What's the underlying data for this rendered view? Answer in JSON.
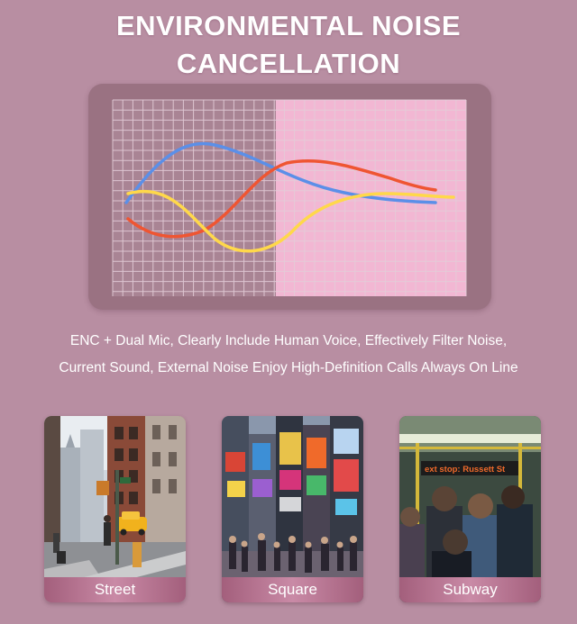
{
  "header": {
    "title_line1": "ENVIRONMENTAL NOISE",
    "title_line2": "CANCELLATION"
  },
  "graph": {
    "icon": "noise-waveform-graphic",
    "line_colors": {
      "blue": "#5b8fe8",
      "red": "#ef5532",
      "yellow": "#ffd84a"
    },
    "grid_color": "#e3cdd8",
    "highlight_color": "#f2b7d3"
  },
  "description": {
    "line1": "ENC + Dual Mic, Clearly Include Human Voice, Effectively Filter Noise,",
    "line2": "Current Sound, External Noise Enjoy High-Definition Calls Always On Line"
  },
  "scenes": [
    {
      "label": "Street",
      "icon": "city-street-photo"
    },
    {
      "label": "Square",
      "icon": "times-square-photo"
    },
    {
      "label": "Subway",
      "icon": "subway-train-photo",
      "sign_text": "ext stop: Russett St"
    }
  ],
  "colors": {
    "background": "#b88ea2",
    "panel": "#9a7282",
    "label_bar": "#b26f8d"
  }
}
